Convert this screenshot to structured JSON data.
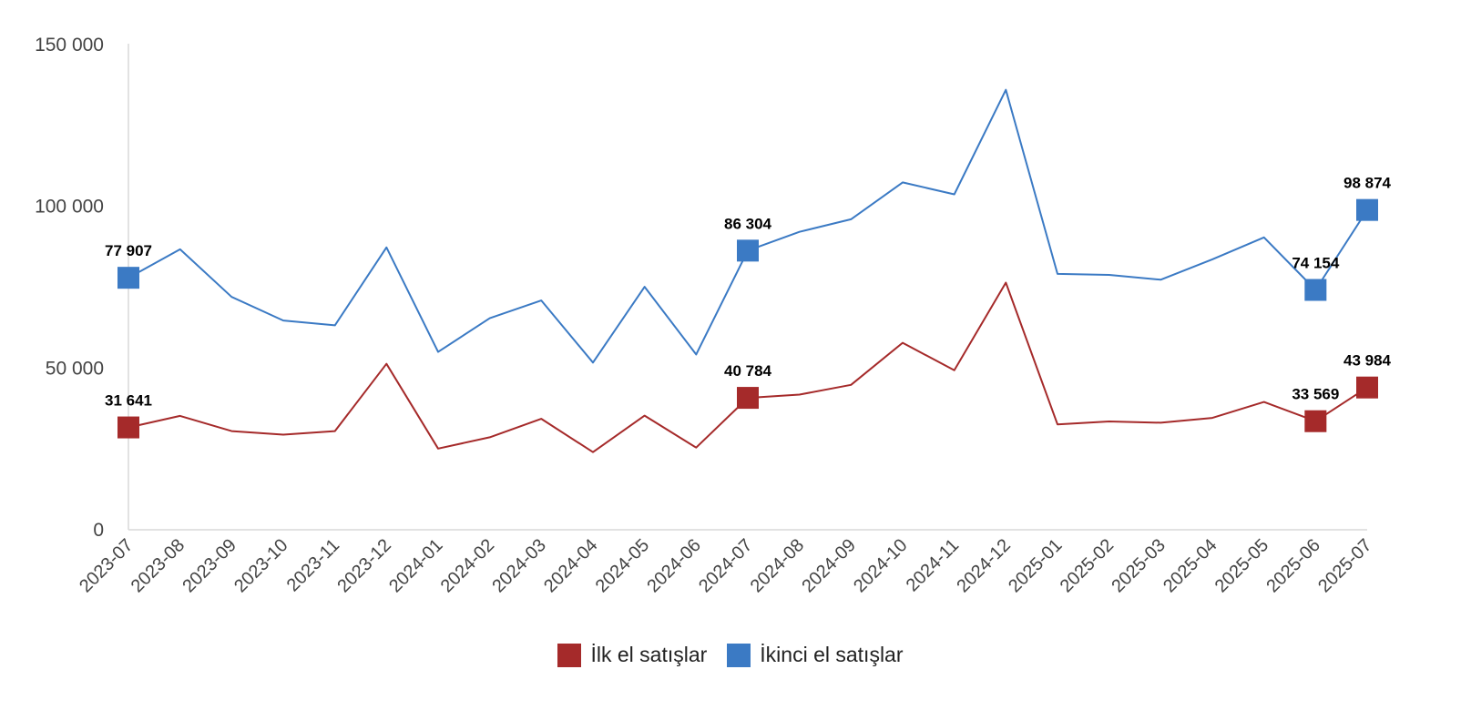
{
  "chart_data": {
    "type": "line",
    "categories": [
      "2023-07",
      "2023-08",
      "2023-09",
      "2023-10",
      "2023-11",
      "2023-12",
      "2024-01",
      "2024-02",
      "2024-03",
      "2024-04",
      "2024-05",
      "2024-06",
      "2024-07",
      "2024-08",
      "2024-09",
      "2024-10",
      "2024-11",
      "2024-12",
      "2025-01",
      "2025-02",
      "2025-03",
      "2025-04",
      "2025-05",
      "2025-06",
      "2025-07"
    ],
    "y_ticks": [
      0,
      50000,
      100000,
      150000
    ],
    "y_tick_labels": [
      "0",
      "50 000",
      "100 000",
      "150 000"
    ],
    "ylim": [
      0,
      150000
    ],
    "grid": false,
    "legend_position": "bottom",
    "series": [
      {
        "name": "İlk el satışlar",
        "color": "#a52a2a",
        "values": [
          31641,
          35200,
          30500,
          29400,
          30500,
          51300,
          25100,
          28600,
          34300,
          24000,
          35300,
          25400,
          40784,
          41800,
          44800,
          57800,
          49300,
          76400,
          32600,
          33500,
          33100,
          34600,
          39500,
          33569,
          43984
        ],
        "markers": [
          {
            "index": 0,
            "label": "31 641"
          },
          {
            "index": 12,
            "label": "40 784"
          },
          {
            "index": 23,
            "label": "33 569"
          },
          {
            "index": 24,
            "label": "43 984"
          }
        ]
      },
      {
        "name": "İkinci el satışlar",
        "color": "#3b7ac4",
        "values": [
          77907,
          86700,
          72000,
          64700,
          63200,
          87300,
          55000,
          65400,
          70900,
          51700,
          75100,
          54200,
          86304,
          92100,
          96000,
          107400,
          103700,
          136000,
          79100,
          78800,
          77300,
          83600,
          90400,
          74154,
          98874
        ],
        "markers": [
          {
            "index": 0,
            "label": "77 907"
          },
          {
            "index": 12,
            "label": "86 304"
          },
          {
            "index": 23,
            "label": "74 154"
          },
          {
            "index": 24,
            "label": "98 874"
          }
        ]
      }
    ]
  }
}
